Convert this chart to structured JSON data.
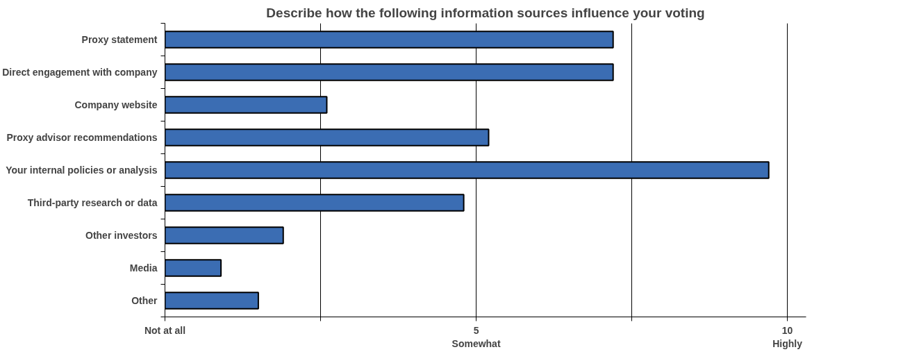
{
  "chart_data": {
    "type": "bar",
    "orientation": "horizontal",
    "title": "Describe how the following information sources influence your voting",
    "categories": [
      "Proxy statement",
      "Direct engagement with company",
      "Company website",
      "Proxy advisor recommendations",
      "Your internal policies or analysis",
      "Third-party research or data",
      "Other investors",
      "Media",
      "Other"
    ],
    "values": [
      7.2,
      7.2,
      2.6,
      5.2,
      9.7,
      4.8,
      1.9,
      0.9,
      1.5
    ],
    "color": "#3b6db3",
    "xlim": [
      0,
      10.3
    ],
    "xticks": [
      {
        "value": 0,
        "label": "Not at all"
      },
      {
        "value": 2.5,
        "label": null
      },
      {
        "value": 5,
        "label": "5\nSomewhat"
      },
      {
        "value": 7.5,
        "label": null
      },
      {
        "value": 10,
        "label": "10\nHighly"
      }
    ],
    "grid": "x"
  }
}
